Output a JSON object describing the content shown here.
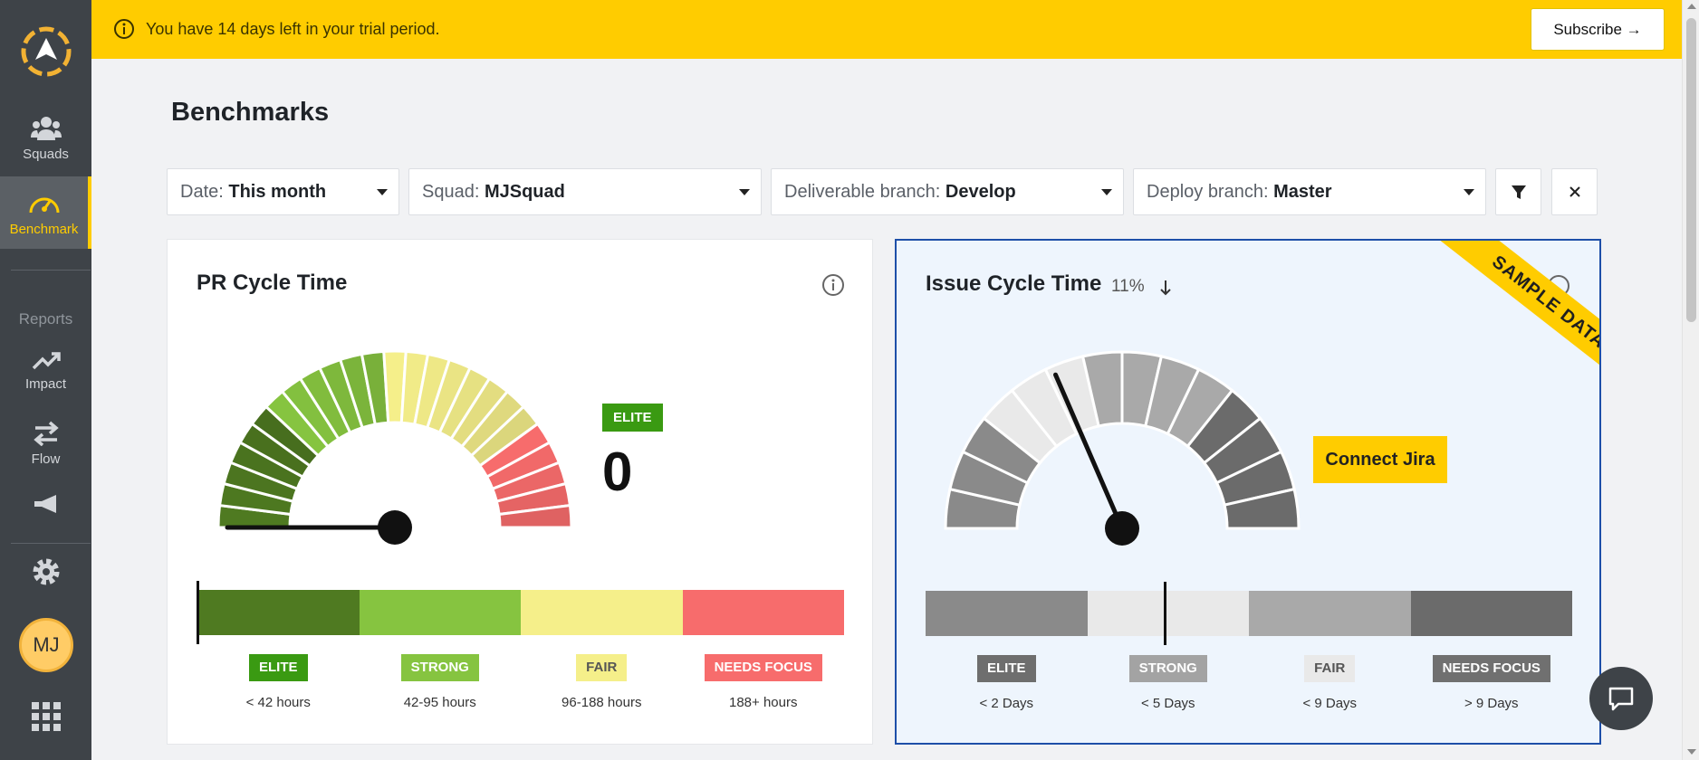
{
  "sidebar": {
    "items": [
      {
        "label": "Squads",
        "icon": "users-icon"
      },
      {
        "label": "Benchmark",
        "icon": "speedometer-icon",
        "active": true
      },
      {
        "label": "Impact",
        "icon": "trend-up-icon"
      },
      {
        "label": "Flow",
        "icon": "swap-arrows-icon"
      }
    ],
    "reports_caption": "Reports",
    "avatar_initials": "MJ"
  },
  "banner": {
    "message": "You have 14 days left in your trial period.",
    "subscribe_label": "Subscribe →"
  },
  "page": {
    "title": "Benchmarks"
  },
  "filters": {
    "date": {
      "label": "Date:",
      "value": "This month"
    },
    "squad": {
      "label": "Squad:",
      "value": "MJSquad"
    },
    "deliverable_branch": {
      "label": "Deliverable branch:",
      "value": "Develop"
    },
    "deploy_branch": {
      "label": "Deploy branch:",
      "value": "Master"
    }
  },
  "pr_card": {
    "title": "PR Cycle Time",
    "level_badge": "ELITE",
    "value": "0",
    "bands": [
      {
        "label": "ELITE",
        "range": "< 42 hours",
        "color": "#4f7a21",
        "badge_color": "#3a9a12",
        "text_color": "#ffffff"
      },
      {
        "label": "STRONG",
        "range": "42-95 hours",
        "color": "#86c440",
        "badge_color": "#86c440",
        "text_color": "#ffffff"
      },
      {
        "label": "FAIR",
        "range": "96-188 hours",
        "color": "#f5ef8a",
        "badge_color": "#f5ef8a",
        "text_color": "#555555"
      },
      {
        "label": "NEEDS FOCUS",
        "range": "188+ hours",
        "color": "#f76c6c",
        "badge_color": "#f76c6c",
        "text_color": "#ffffff"
      }
    ],
    "needle_fraction": 0.0
  },
  "issue_card": {
    "title": "Issue Cycle Time",
    "change": "11%",
    "change_direction": "down",
    "ribbon": "SAMPLE DATA",
    "connect_label": "Connect Jira",
    "bands": [
      {
        "label": "ELITE",
        "range": "< 2 Days",
        "color": "#8a8a8a",
        "badge_color": "#6e6e6e",
        "text_color": "#ffffff"
      },
      {
        "label": "STRONG",
        "range": "< 5 Days",
        "color": "#e9e9e9",
        "badge_color": "#a3a3a3",
        "text_color": "#ffffff"
      },
      {
        "label": "FAIR",
        "range": "< 9 Days",
        "color": "#a9a9a9",
        "badge_color": "#e9e9e9",
        "text_color": "#555555"
      },
      {
        "label": "NEEDS FOCUS",
        "range": "> 9 Days",
        "color": "#6b6b6b",
        "badge_color": "#707070",
        "text_color": "#ffffff"
      }
    ],
    "needle_fraction": 0.37
  }
}
